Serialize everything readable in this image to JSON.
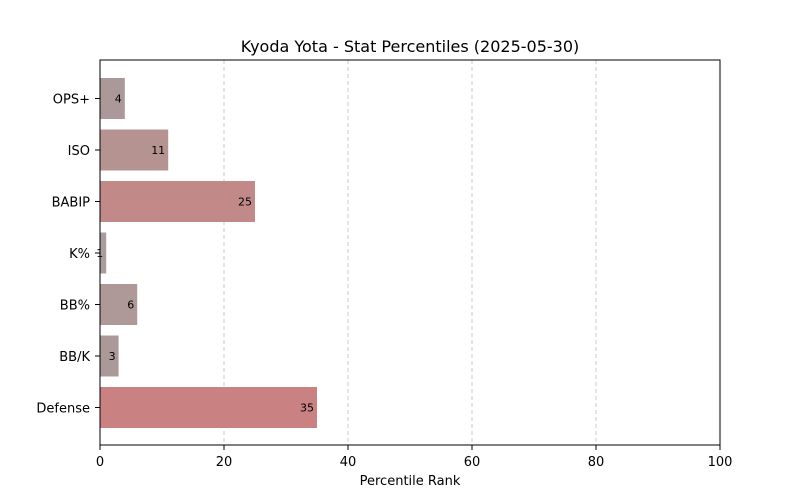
{
  "chart_data": {
    "type": "bar",
    "orientation": "horizontal",
    "title": "Kyoda Yota - Stat Percentiles (2025-05-30)",
    "xlabel": "Percentile Rank",
    "ylabel": "",
    "xlim": [
      0,
      100
    ],
    "xticks": [
      0,
      20,
      40,
      60,
      80,
      100
    ],
    "grid": "x-dashed",
    "categories": [
      "OPS+",
      "ISO",
      "BABIP",
      "K%",
      "BB%",
      "BB/K",
      "Defense"
    ],
    "values": [
      4,
      11,
      25,
      1,
      6,
      3,
      35
    ],
    "colors": [
      "#ab9999",
      "#b59391",
      "#c18a88",
      "#a99c9c",
      "#af9898",
      "#ab9999",
      "#c98181"
    ]
  }
}
